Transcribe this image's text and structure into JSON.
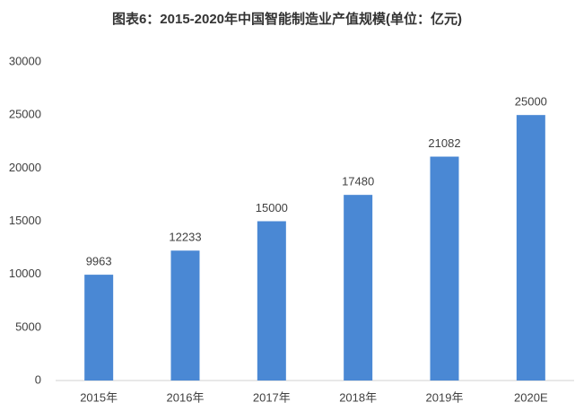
{
  "chart_data": {
    "type": "bar",
    "title": "图表6：2015-2020年中国智能制造业产值规模(单位：亿元)",
    "categories": [
      "2015年",
      "2016年",
      "2017年",
      "2018年",
      "2019年",
      "2020E"
    ],
    "values": [
      9963,
      12233,
      15000,
      17480,
      21082,
      25000
    ],
    "color": "#4a88d4",
    "ylim": [
      0,
      30000
    ],
    "yticks": [
      0,
      5000,
      10000,
      15000,
      20000,
      25000,
      30000
    ],
    "grid": false
  }
}
